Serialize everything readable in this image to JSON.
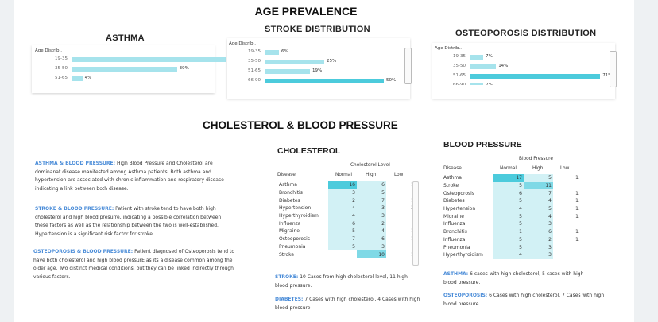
{
  "page": {
    "title": "AGE PREVALENCE",
    "section2_title": "CHOLESTEROL & BLOOD PRESSURE"
  },
  "colors": {
    "bar_light": "#a6e3ec",
    "bar_dark": "#4ccbdc",
    "accent_text": "#4a8cd8"
  },
  "asthma": {
    "title": "ASTHMA",
    "field": "Age Distrib..",
    "rows": [
      {
        "label": "19-35",
        "value": 57,
        "text": "57%"
      },
      {
        "label": "35-50",
        "value": 39,
        "text": "39%"
      },
      {
        "label": "51-65",
        "value": 4,
        "text": "4%"
      }
    ]
  },
  "stroke": {
    "title": "STROKE DISTRIBUTION",
    "field": "Age Distrib..",
    "rows": [
      {
        "label": "19-35",
        "value": 6,
        "text": "6%"
      },
      {
        "label": "35-50",
        "value": 25,
        "text": "25%"
      },
      {
        "label": "51-65",
        "value": 19,
        "text": "19%"
      },
      {
        "label": "66-90",
        "value": 50,
        "text": "50%"
      }
    ]
  },
  "osteo": {
    "title": "OSTEOPOROSIS DISTRIBUTION",
    "field": "Age Distrib..",
    "rows": [
      {
        "label": "19-35",
        "value": 7,
        "text": "7%"
      },
      {
        "label": "35-50",
        "value": 14,
        "text": "14%"
      },
      {
        "label": "51-65",
        "value": 71,
        "text": "71%"
      },
      {
        "label": "66-90",
        "value": 7,
        "text": "7%"
      }
    ]
  },
  "descriptions": {
    "asthma": {
      "lead": "ASTHMA & BLOOD PRESSURE:",
      "body": "High Blood Pressure and Cholesterol are dominanat disease manifested among Asthma patients, Both asthma and hypertension are associated with chronic inflammation and respiratory disease indicating a link between both disease."
    },
    "stroke": {
      "lead": "STROKE & BLOOD PRESSURE:",
      "body": "Patient with stroke tend to have both high cholesterol and high blood presurre, indicating a possible correlation between these factors as well as the relationship between the two is well-established. Hypertension is a significant risk factor for stroke"
    },
    "osteo": {
      "lead": "OSTEOPOROSIS & BLOOD PRESSURE:",
      "body": "Patient diagnosed of Osteoporosis tend to have both cholesterol and high blood pressurE as its a disease common among the older age. Two distinct medical conditions, but they can be linked indirectly through various factors."
    }
  },
  "cholesterol": {
    "title": "CHOLESTEROL",
    "level_header": "Cholesterol Level",
    "col_disease": "Disease",
    "cols": [
      "Normal",
      "High",
      "Low"
    ],
    "rows": [
      {
        "name": "Asthma",
        "vals": [
          "16",
          "6",
          "1"
        ]
      },
      {
        "name": "Bronchitis",
        "vals": [
          "3",
          "5",
          ""
        ]
      },
      {
        "name": "Diabetes",
        "vals": [
          "2",
          "7",
          "1"
        ]
      },
      {
        "name": "Hypertension",
        "vals": [
          "4",
          "3",
          "3"
        ]
      },
      {
        "name": "Hyperthyroidism",
        "vals": [
          "4",
          "3",
          ""
        ]
      },
      {
        "name": "Influenza",
        "vals": [
          "6",
          "2",
          ""
        ]
      },
      {
        "name": "Migraine",
        "vals": [
          "5",
          "4",
          "1"
        ]
      },
      {
        "name": "Osteoporosis",
        "vals": [
          "7",
          "6",
          "1"
        ]
      },
      {
        "name": "Pneumonia",
        "vals": [
          "5",
          "3",
          ""
        ]
      },
      {
        "name": "Stroke",
        "vals": [
          "",
          "10",
          "1"
        ]
      }
    ],
    "notes": [
      {
        "lead": "STROKE:",
        "body": "10 Cases from high cholesterol level, 11 high blood pressure."
      },
      {
        "lead": "DIABETES:",
        "body": "7 Cases with high cholesterol, 4 Cases with high blood pressure"
      }
    ]
  },
  "bloodpressure": {
    "title": "BLOOD PRESSURE",
    "level_header": "Blood Pressure",
    "col_disease": "Disease",
    "cols": [
      "Normal",
      "High",
      "Low"
    ],
    "rows": [
      {
        "name": "Asthma",
        "vals": [
          "17",
          "5",
          "1"
        ]
      },
      {
        "name": "Stroke",
        "vals": [
          "5",
          "11",
          ""
        ]
      },
      {
        "name": "Osteoporosis",
        "vals": [
          "6",
          "7",
          "1"
        ]
      },
      {
        "name": "Diabetes",
        "vals": [
          "5",
          "4",
          "1"
        ]
      },
      {
        "name": "Hypertension",
        "vals": [
          "4",
          "5",
          "1"
        ]
      },
      {
        "name": "Migraine",
        "vals": [
          "5",
          "4",
          "1"
        ]
      },
      {
        "name": "Influenza",
        "vals": [
          "5",
          "3",
          ""
        ]
      },
      {
        "name": "Bronchitis",
        "vals": [
          "1",
          "6",
          "1"
        ]
      },
      {
        "name": "Influenza",
        "vals": [
          "5",
          "2",
          "1"
        ]
      },
      {
        "name": "Pneumonia",
        "vals": [
          "5",
          "3",
          ""
        ]
      },
      {
        "name": "Hyperthyroidism",
        "vals": [
          "4",
          "3",
          ""
        ]
      }
    ],
    "notes": [
      {
        "lead": "ASTHMA:",
        "body": "6 cases with high cholesterol, 5 cases with high blood pressure."
      },
      {
        "lead": "OSTEOPOROSIS:",
        "body": "6 Cases with high cholesterol, 7 Cases with high blood pressure"
      }
    ]
  }
}
